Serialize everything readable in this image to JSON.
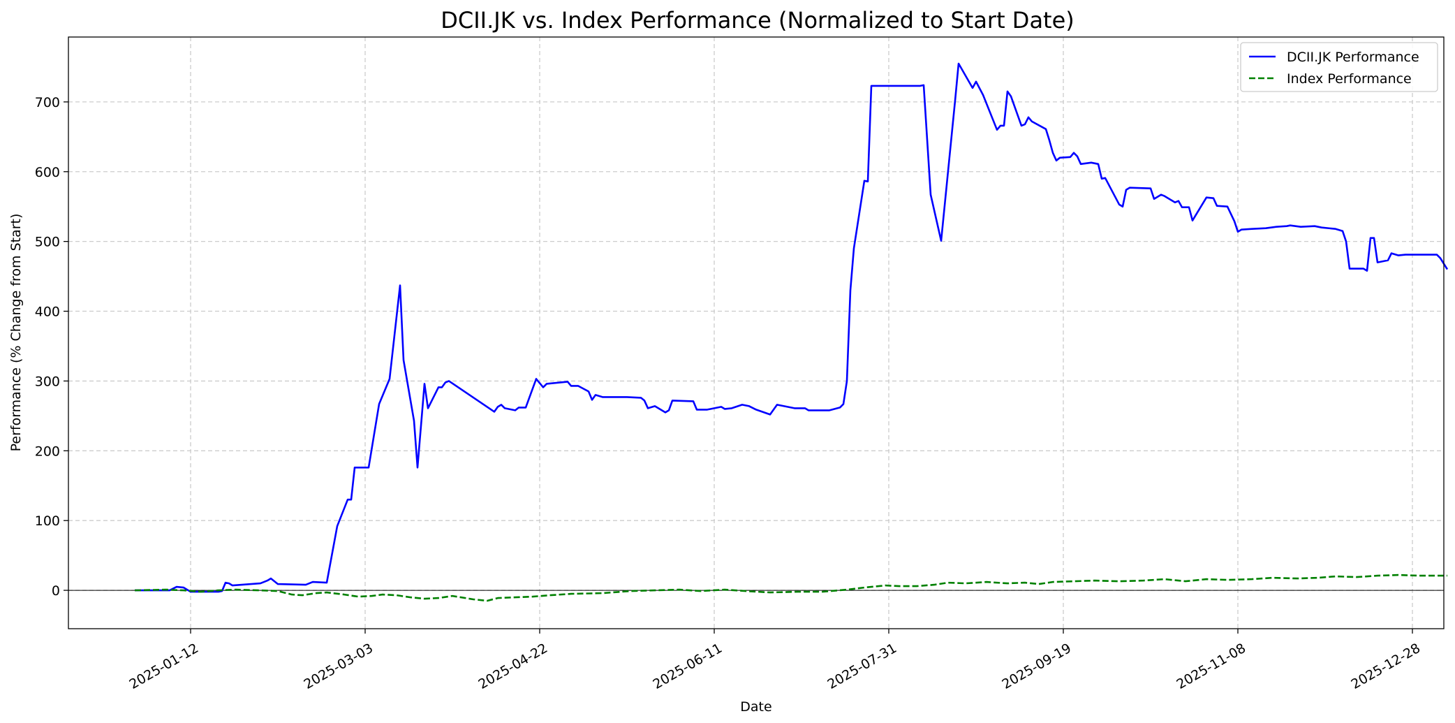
{
  "chart_data": {
    "type": "line",
    "title": "DCII.JK vs. Index Performance (Normalized to Start Date)",
    "xlabel": "Date",
    "ylabel": "Performance (% Change from Start)",
    "xlim": [
      "2024-12-08",
      "2026-01-06"
    ],
    "ylim": [
      -55,
      793
    ],
    "x_ticks": [
      "2025-01-12",
      "2025-03-03",
      "2025-04-22",
      "2025-06-11",
      "2025-07-31",
      "2025-09-19",
      "2025-11-08",
      "2025-12-28"
    ],
    "y_ticks": [
      0,
      100,
      200,
      300,
      400,
      500,
      600,
      700
    ],
    "grid": true,
    "legend_position": "top-right",
    "zero_line": true,
    "series": [
      {
        "name": "DCII.JK Performance",
        "color": "#0000ff",
        "style": "solid",
        "points": [
          [
            "2024-12-27",
            0
          ],
          [
            "2025-01-01",
            0
          ],
          [
            "2025-01-06",
            0
          ],
          [
            "2025-01-08",
            5
          ],
          [
            "2025-01-10",
            4
          ],
          [
            "2025-01-12",
            -2
          ],
          [
            "2025-01-16",
            -2
          ],
          [
            "2025-01-20",
            -2
          ],
          [
            "2025-01-21",
            -1
          ],
          [
            "2025-01-22",
            11
          ],
          [
            "2025-01-23",
            10
          ],
          [
            "2025-01-24",
            7
          ],
          [
            "2025-02-01",
            10
          ],
          [
            "2025-02-03",
            14
          ],
          [
            "2025-02-04",
            17
          ],
          [
            "2025-02-06",
            9
          ],
          [
            "2025-02-14",
            8
          ],
          [
            "2025-02-16",
            12
          ],
          [
            "2025-02-20",
            11
          ],
          [
            "2025-02-23",
            92
          ],
          [
            "2025-02-26",
            130
          ],
          [
            "2025-02-27",
            130
          ],
          [
            "2025-02-28",
            176
          ],
          [
            "2025-03-04",
            176
          ],
          [
            "2025-03-07",
            267
          ],
          [
            "2025-03-10",
            303
          ],
          [
            "2025-03-13",
            437
          ],
          [
            "2025-03-14",
            330
          ],
          [
            "2025-03-17",
            243
          ],
          [
            "2025-03-18",
            176
          ],
          [
            "2025-03-20",
            296
          ],
          [
            "2025-03-21",
            261
          ],
          [
            "2025-03-24",
            291
          ],
          [
            "2025-03-25",
            291
          ],
          [
            "2025-03-26",
            298
          ],
          [
            "2025-03-27",
            300
          ],
          [
            "2025-04-09",
            256
          ],
          [
            "2025-04-10",
            263
          ],
          [
            "2025-04-11",
            266
          ],
          [
            "2025-04-12",
            261
          ],
          [
            "2025-04-15",
            258
          ],
          [
            "2025-04-16",
            262
          ],
          [
            "2025-04-18",
            262
          ],
          [
            "2025-04-21",
            303
          ],
          [
            "2025-04-23",
            291
          ],
          [
            "2025-04-24",
            296
          ],
          [
            "2025-04-28",
            298
          ],
          [
            "2025-04-30",
            299
          ],
          [
            "2025-05-01",
            293
          ],
          [
            "2025-05-03",
            293
          ],
          [
            "2025-05-06",
            285
          ],
          [
            "2025-05-07",
            273
          ],
          [
            "2025-05-08",
            280
          ],
          [
            "2025-05-10",
            277
          ],
          [
            "2025-05-17",
            277
          ],
          [
            "2025-05-21",
            276
          ],
          [
            "2025-05-22",
            272
          ],
          [
            "2025-05-23",
            261
          ],
          [
            "2025-05-25",
            264
          ],
          [
            "2025-05-28",
            255
          ],
          [
            "2025-05-29",
            258
          ],
          [
            "2025-05-30",
            272
          ],
          [
            "2025-06-05",
            271
          ],
          [
            "2025-06-06",
            259
          ],
          [
            "2025-06-09",
            259
          ],
          [
            "2025-06-13",
            263
          ],
          [
            "2025-06-14",
            260
          ],
          [
            "2025-06-16",
            261
          ],
          [
            "2025-06-19",
            266
          ],
          [
            "2025-06-21",
            264
          ],
          [
            "2025-06-23",
            259
          ],
          [
            "2025-06-27",
            252
          ],
          [
            "2025-06-29",
            266
          ],
          [
            "2025-07-04",
            261
          ],
          [
            "2025-07-07",
            261
          ],
          [
            "2025-07-08",
            258
          ],
          [
            "2025-07-14",
            258
          ],
          [
            "2025-07-17",
            262
          ],
          [
            "2025-07-18",
            267
          ],
          [
            "2025-07-19",
            300
          ],
          [
            "2025-07-20",
            430
          ],
          [
            "2025-07-21",
            490
          ],
          [
            "2025-07-24",
            587
          ],
          [
            "2025-07-25",
            586
          ],
          [
            "2025-07-26",
            723
          ],
          [
            "2025-08-09",
            723
          ],
          [
            "2025-08-10",
            724
          ],
          [
            "2025-08-12",
            567
          ],
          [
            "2025-08-15",
            501
          ],
          [
            "2025-08-19",
            702
          ],
          [
            "2025-08-20",
            755
          ],
          [
            "2025-08-24",
            720
          ],
          [
            "2025-08-25",
            729
          ],
          [
            "2025-08-27",
            710
          ],
          [
            "2025-08-31",
            660
          ],
          [
            "2025-09-01",
            666
          ],
          [
            "2025-09-02",
            666
          ],
          [
            "2025-09-03",
            715
          ],
          [
            "2025-09-04",
            708
          ],
          [
            "2025-09-07",
            666
          ],
          [
            "2025-09-08",
            668
          ],
          [
            "2025-09-09",
            678
          ],
          [
            "2025-09-10",
            672
          ],
          [
            "2025-09-14",
            661
          ],
          [
            "2025-09-15",
            645
          ],
          [
            "2025-09-16",
            627
          ],
          [
            "2025-09-17",
            616
          ],
          [
            "2025-09-18",
            620
          ],
          [
            "2025-09-21",
            621
          ],
          [
            "2025-09-22",
            627
          ],
          [
            "2025-09-23",
            622
          ],
          [
            "2025-09-24",
            611
          ],
          [
            "2025-09-27",
            613
          ],
          [
            "2025-09-28",
            612
          ],
          [
            "2025-09-29",
            611
          ],
          [
            "2025-09-30",
            590
          ],
          [
            "2025-10-01",
            591
          ],
          [
            "2025-10-05",
            553
          ],
          [
            "2025-10-06",
            550
          ],
          [
            "2025-10-07",
            574
          ],
          [
            "2025-10-08",
            577
          ],
          [
            "2025-10-14",
            576
          ],
          [
            "2025-10-15",
            561
          ],
          [
            "2025-10-16",
            564
          ],
          [
            "2025-10-17",
            567
          ],
          [
            "2025-10-18",
            565
          ],
          [
            "2025-10-21",
            556
          ],
          [
            "2025-10-22",
            558
          ],
          [
            "2025-10-23",
            549
          ],
          [
            "2025-10-25",
            549
          ],
          [
            "2025-10-26",
            530
          ],
          [
            "2025-10-30",
            563
          ],
          [
            "2025-11-01",
            562
          ],
          [
            "2025-11-02",
            551
          ],
          [
            "2025-11-05",
            550
          ],
          [
            "2025-11-07",
            529
          ],
          [
            "2025-11-08",
            514
          ],
          [
            "2025-11-09",
            517
          ],
          [
            "2025-11-12",
            518
          ],
          [
            "2025-11-16",
            519
          ],
          [
            "2025-11-19",
            521
          ],
          [
            "2025-11-22",
            522
          ],
          [
            "2025-11-23",
            523
          ],
          [
            "2025-11-26",
            521
          ],
          [
            "2025-11-30",
            522
          ],
          [
            "2025-12-02",
            520
          ],
          [
            "2025-12-06",
            518
          ],
          [
            "2025-12-08",
            515
          ],
          [
            "2025-12-09",
            500
          ],
          [
            "2025-12-10",
            461
          ],
          [
            "2025-12-14",
            461
          ],
          [
            "2025-12-15",
            458
          ],
          [
            "2025-12-16",
            505
          ],
          [
            "2025-12-17",
            505
          ],
          [
            "2025-12-18",
            470
          ],
          [
            "2025-12-21",
            473
          ],
          [
            "2025-12-22",
            483
          ],
          [
            "2025-12-24",
            480
          ],
          [
            "2025-12-26",
            481
          ],
          [
            "2026-01-04",
            481
          ],
          [
            "2026-01-05",
            476
          ],
          [
            "2026-01-07",
            460
          ]
        ]
      },
      {
        "name": "Index Performance",
        "color": "#008000",
        "style": "dashed",
        "points": [
          [
            "2024-12-27",
            0
          ],
          [
            "2025-01-05",
            1
          ],
          [
            "2025-01-10",
            0
          ],
          [
            "2025-01-15",
            -2
          ],
          [
            "2025-01-20",
            0
          ],
          [
            "2025-01-25",
            1
          ],
          [
            "2025-02-01",
            0
          ],
          [
            "2025-02-06",
            -1
          ],
          [
            "2025-02-10",
            -6
          ],
          [
            "2025-02-13",
            -7
          ],
          [
            "2025-02-17",
            -4
          ],
          [
            "2025-02-20",
            -3
          ],
          [
            "2025-02-25",
            -6
          ],
          [
            "2025-03-01",
            -9
          ],
          [
            "2025-03-05",
            -8
          ],
          [
            "2025-03-08",
            -6
          ],
          [
            "2025-03-12",
            -7
          ],
          [
            "2025-03-16",
            -10
          ],
          [
            "2025-03-20",
            -12
          ],
          [
            "2025-03-24",
            -11
          ],
          [
            "2025-03-28",
            -8
          ],
          [
            "2025-04-03",
            -13
          ],
          [
            "2025-04-07",
            -15
          ],
          [
            "2025-04-10",
            -11
          ],
          [
            "2025-04-15",
            -10
          ],
          [
            "2025-04-20",
            -9
          ],
          [
            "2025-04-25",
            -7
          ],
          [
            "2025-05-01",
            -5
          ],
          [
            "2025-05-10",
            -4
          ],
          [
            "2025-05-18",
            -1
          ],
          [
            "2025-05-25",
            0
          ],
          [
            "2025-06-01",
            1
          ],
          [
            "2025-06-07",
            -1
          ],
          [
            "2025-06-14",
            1
          ],
          [
            "2025-06-20",
            -1
          ],
          [
            "2025-06-27",
            -3
          ],
          [
            "2025-07-05",
            -2
          ],
          [
            "2025-07-12",
            -2
          ],
          [
            "2025-07-19",
            1
          ],
          [
            "2025-07-24",
            4
          ],
          [
            "2025-07-30",
            7
          ],
          [
            "2025-08-03",
            6
          ],
          [
            "2025-08-08",
            6
          ],
          [
            "2025-08-13",
            8
          ],
          [
            "2025-08-17",
            11
          ],
          [
            "2025-08-22",
            10
          ],
          [
            "2025-08-28",
            12
          ],
          [
            "2025-09-03",
            10
          ],
          [
            "2025-09-08",
            11
          ],
          [
            "2025-09-12",
            9
          ],
          [
            "2025-09-16",
            12
          ],
          [
            "2025-09-22",
            13
          ],
          [
            "2025-09-28",
            14
          ],
          [
            "2025-10-05",
            13
          ],
          [
            "2025-10-12",
            14
          ],
          [
            "2025-10-18",
            16
          ],
          [
            "2025-10-24",
            13
          ],
          [
            "2025-10-30",
            16
          ],
          [
            "2025-11-05",
            15
          ],
          [
            "2025-11-12",
            16
          ],
          [
            "2025-11-18",
            18
          ],
          [
            "2025-11-25",
            17
          ],
          [
            "2025-12-01",
            18
          ],
          [
            "2025-12-06",
            20
          ],
          [
            "2025-12-12",
            19
          ],
          [
            "2025-12-18",
            21
          ],
          [
            "2025-12-24",
            22
          ],
          [
            "2025-12-30",
            21
          ],
          [
            "2026-01-07",
            21
          ]
        ]
      }
    ]
  }
}
